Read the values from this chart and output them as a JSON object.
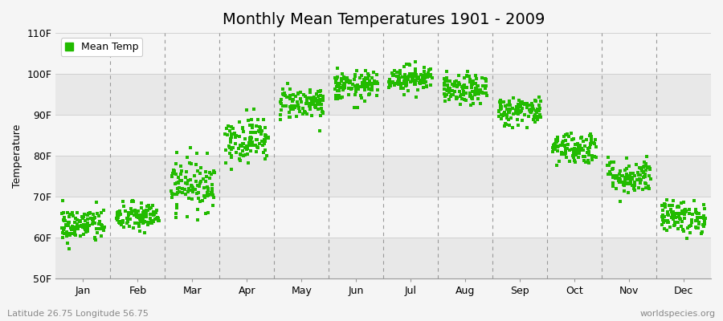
{
  "title": "Monthly Mean Temperatures 1901 - 2009",
  "ylabel": "Temperature",
  "xlabel_bottom_left": "Latitude 26.75 Longitude 56.75",
  "xlabel_bottom_right": "worldspecies.org",
  "ytick_labels": [
    "50F",
    "60F",
    "70F",
    "80F",
    "90F",
    "100F",
    "110F"
  ],
  "ytick_values": [
    50,
    60,
    70,
    80,
    90,
    100,
    110
  ],
  "ylim": [
    50,
    110
  ],
  "months": [
    "Jan",
    "Feb",
    "Mar",
    "Apr",
    "May",
    "Jun",
    "Jul",
    "Aug",
    "Sep",
    "Oct",
    "Nov",
    "Dec"
  ],
  "dot_color": "#22bb00",
  "background_color": "#f5f5f5",
  "plot_bg_color": "#f5f5f5",
  "band_light": "#f5f5f5",
  "band_dark": "#e8e8e8",
  "grid_color": "#cccccc",
  "dashed_color": "#999999",
  "title_fontsize": 14,
  "label_fontsize": 9,
  "tick_fontsize": 9,
  "legend_label": "Mean Temp",
  "monthly_means": [
    63,
    65,
    73,
    84,
    93,
    97,
    99,
    96,
    91,
    82,
    75,
    65
  ],
  "monthly_stds": [
    2.2,
    1.8,
    3.2,
    2.8,
    2.0,
    1.8,
    1.6,
    1.8,
    1.8,
    2.0,
    2.2,
    2.0
  ]
}
